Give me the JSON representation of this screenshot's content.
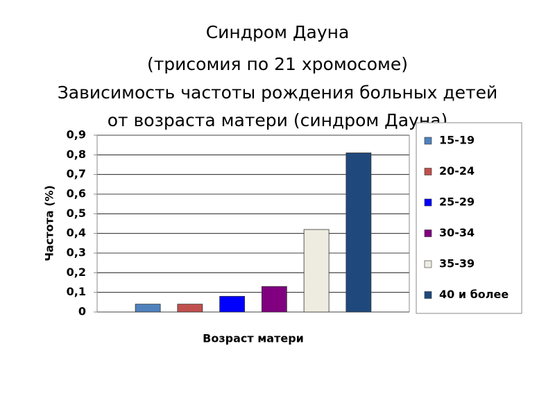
{
  "chart_data": {
    "type": "bar",
    "title": [
      "Синдром Дауна",
      "(трисомия по 21 хромосоме)",
      "Зависимость частоты рождения больных детей",
      "от возраста матери (синдром Дауна)"
    ],
    "xlabel": "Возраст матери",
    "ylabel": "Частота (%)",
    "categories": [
      null
    ],
    "series": [
      {
        "name": "15-19",
        "color": "#4f81bd",
        "values": [
          0.04
        ]
      },
      {
        "name": "20-24",
        "color": "#c0504d",
        "values": [
          0.04
        ]
      },
      {
        "name": "25-29",
        "color": "#0000ff",
        "values": [
          0.08
        ]
      },
      {
        "name": "30-34",
        "color": "#800080",
        "values": [
          0.13
        ]
      },
      {
        "name": "35-39",
        "color": "#eeece1",
        "values": [
          0.42
        ]
      },
      {
        "name": "40 и более",
        "color": "#1f497d",
        "values": [
          0.81
        ]
      }
    ],
    "ylim": [
      0,
      0.9
    ],
    "yticks": [
      0,
      {
        "value": 0.1,
        "label": "0,1"
      },
      {
        "value": 0.2,
        "label": "0,2"
      },
      {
        "value": 0.3,
        "label": "0,3"
      },
      {
        "value": 0.4,
        "label": "0,4"
      },
      {
        "value": 0.5,
        "label": "0,5"
      },
      {
        "value": 0.6,
        "label": "0,6"
      },
      {
        "value": 0.7,
        "label": "0,7"
      },
      {
        "value": 0.8,
        "label": "0,8"
      },
      {
        "value": 0.9,
        "label": "0,9"
      }
    ],
    "grid": true,
    "legend": "right"
  }
}
